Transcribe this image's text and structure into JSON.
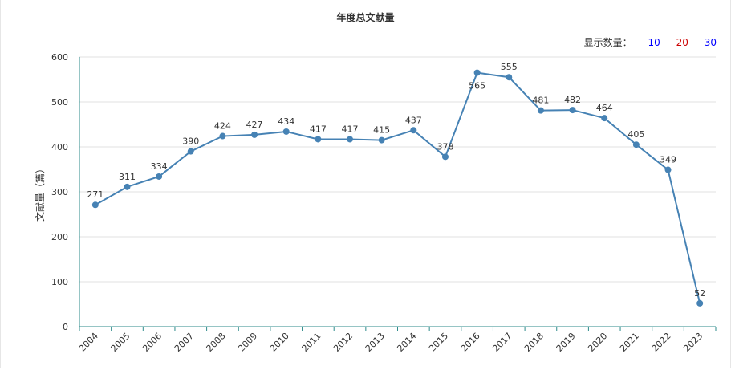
{
  "chart_data": {
    "type": "line",
    "title": "年度总文献量",
    "ylabel": "文献量（篇）",
    "xlabel": "",
    "categories": [
      "2004",
      "2005",
      "2006",
      "2007",
      "2008",
      "2009",
      "2010",
      "2011",
      "2012",
      "2013",
      "2014",
      "2015",
      "2016",
      "2017",
      "2018",
      "2019",
      "2020",
      "2021",
      "2022",
      "2023"
    ],
    "values": [
      271,
      311,
      334,
      390,
      424,
      427,
      434,
      417,
      417,
      415,
      437,
      378,
      565,
      555,
      481,
      482,
      464,
      405,
      349,
      52
    ],
    "ylim": [
      0,
      600
    ],
    "yticks": [
      "0",
      "100",
      "200",
      "300",
      "400",
      "500",
      "600"
    ],
    "grid": true,
    "line_color": "#4682b4"
  },
  "display_count": {
    "label": "显示数量：",
    "options": [
      {
        "label": "10",
        "color": "#0000ff"
      },
      {
        "label": "20",
        "color": "#cc0000"
      },
      {
        "label": "30",
        "color": "#0000ff"
      }
    ]
  }
}
